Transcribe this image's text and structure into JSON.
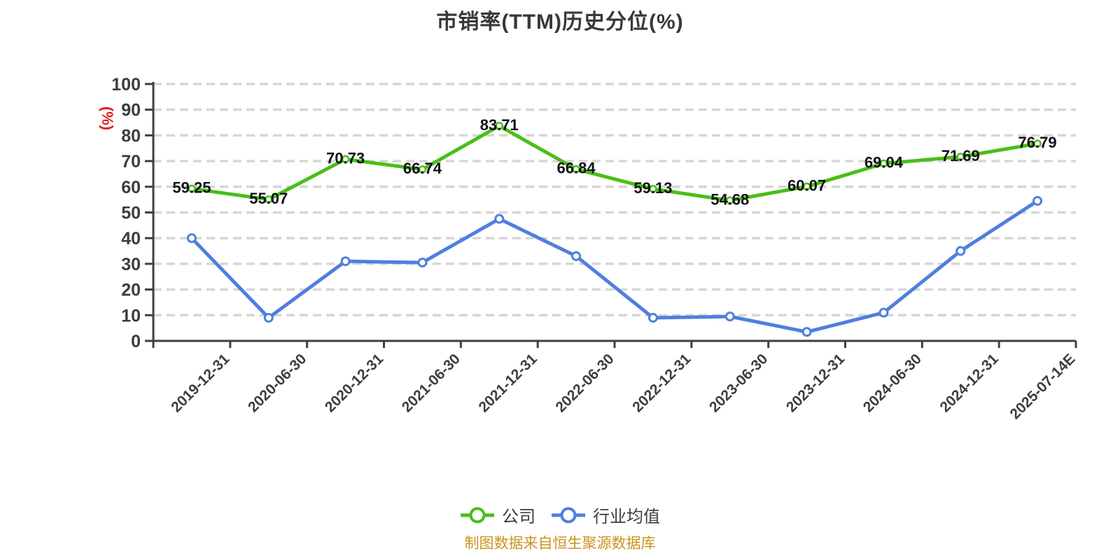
{
  "chart_data": {
    "type": "line",
    "title": "市销率(TTM)历史分位(%)",
    "ylabel": "(%)",
    "footer": "制图数据来自恒生聚源数据库",
    "ylim": [
      0,
      100
    ],
    "y_ticks": [
      0,
      10,
      20,
      30,
      40,
      50,
      60,
      70,
      80,
      90,
      100
    ],
    "grid": "horizontal-dashed",
    "legend_position": "bottom",
    "categories": [
      "2019-12-31",
      "2020-06-30",
      "2020-12-31",
      "2021-06-30",
      "2021-12-31",
      "2022-06-30",
      "2022-12-31",
      "2023-06-30",
      "2023-12-31",
      "2024-06-30",
      "2024-12-31",
      "2025-07-14E"
    ],
    "series": [
      {
        "name": "公司",
        "color": "#49BE18",
        "values": [
          59.25,
          55.07,
          70.73,
          66.74,
          83.71,
          66.84,
          59.13,
          54.68,
          60.07,
          69.04,
          71.69,
          76.79
        ],
        "labels": [
          "59.25",
          "55.07",
          "70.73",
          "66.74",
          "83.71",
          "66.84",
          "59.13",
          "54.68",
          "60.07",
          "69.04",
          "71.69",
          "76.79"
        ],
        "point_labels_visible": true
      },
      {
        "name": "行业均值",
        "color": "#4F7FDF",
        "values": [
          40,
          9,
          31,
          30.5,
          47.5,
          33,
          9,
          9.5,
          3.5,
          11,
          35,
          54.5
        ],
        "point_labels_visible": false
      }
    ]
  },
  "colors": {
    "background": "#FFFFFF",
    "grid": "#D6D6D6",
    "axis": "#3F3F3F",
    "tick_text": "#3D3D3D",
    "data_label": "#111111",
    "title": "#383838",
    "ylabel": "#E02020",
    "footer": "#C9941F",
    "legend_text": "#3D3D3D",
    "marker_fill": "#FFFFFF"
  }
}
